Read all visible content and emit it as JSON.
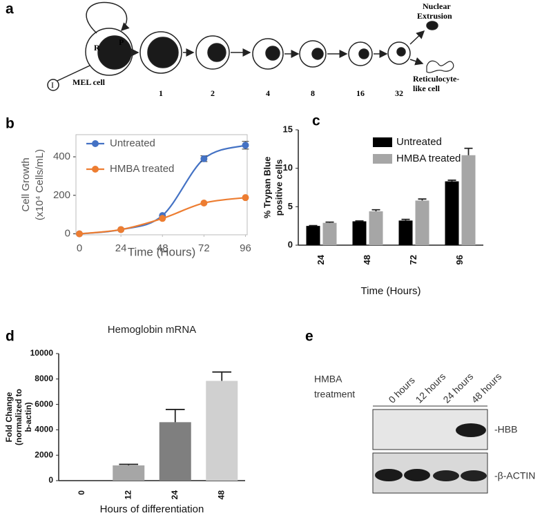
{
  "panels": [
    "a",
    "b",
    "c",
    "d",
    "e"
  ],
  "diagram": {
    "self_renewal": "R",
    "proliferation": "P",
    "inducer": "I",
    "start": "MEL cell",
    "steps": [
      "1",
      "2",
      "4",
      "8",
      "16",
      "32"
    ],
    "extrusion": [
      "Nuclear",
      "Extrusion"
    ],
    "product": [
      "Reticulocyte-",
      "like cell"
    ]
  },
  "chart_data": [
    {
      "type": "line",
      "xlabel": "Time (Hours)",
      "ylabel": [
        "Cell Growth",
        "(x10⁴ Cells/mL)"
      ],
      "x": [
        0,
        24,
        48,
        72,
        96
      ],
      "xlim": [
        -2,
        97
      ],
      "xticks": [
        0,
        24,
        48,
        72,
        96
      ],
      "ylim": [
        -5,
        515
      ],
      "yticks": [
        0,
        200,
        400
      ],
      "series": [
        {
          "name": "Untreated",
          "color": "#4472c4",
          "values": [
            0,
            22,
            95,
            390,
            460
          ],
          "errors": [
            null,
            null,
            null,
            15,
            20
          ]
        },
        {
          "name": "HMBA treated",
          "color": "#ed7d31",
          "values": [
            0,
            22,
            80,
            160,
            188
          ]
        }
      ]
    },
    {
      "type": "bar",
      "xlabel": "Time (Hours)",
      "ylabel": [
        "% Trypan Blue",
        "positive cells"
      ],
      "categories": [
        "24",
        "48",
        "72",
        "96"
      ],
      "ylim": [
        0,
        15
      ],
      "yticks": [
        0,
        5,
        10,
        15
      ],
      "series": [
        {
          "name": "Untreated",
          "color": "#000000",
          "values": [
            2.5,
            3.1,
            3.2,
            8.3
          ],
          "errors": [
            0.05,
            0.05,
            0.15,
            0.15
          ]
        },
        {
          "name": "HMBA treated",
          "color": "#a6a6a6",
          "values": [
            2.9,
            4.4,
            5.8,
            11.7
          ],
          "errors": [
            0.1,
            0.2,
            0.2,
            0.9
          ]
        }
      ]
    },
    {
      "type": "bar",
      "title": "Hemoglobin mRNA",
      "xlabel": "Hours of differentiation",
      "ylabel": [
        "Fold Change",
        "(normalized to",
        "b-actin)"
      ],
      "categories": [
        "0",
        "12",
        "24",
        "48"
      ],
      "ylim": [
        0,
        10000
      ],
      "yticks": [
        0,
        2000,
        4000,
        6000,
        8000,
        10000
      ],
      "series": [
        {
          "colors": [
            "#7f7f7f",
            "#a6a6a6",
            "#7f7f7f",
            "#d0d0d0"
          ],
          "values": [
            0,
            1200,
            4600,
            7850
          ],
          "errors": [
            null,
            80,
            1000,
            700
          ]
        }
      ]
    }
  ],
  "blot": {
    "treatment": [
      "HMBA",
      "treatment"
    ],
    "lanes": [
      "0 hours",
      "12 hours",
      "24 hours",
      "48 hours"
    ],
    "bands": [
      "-HBB",
      "-β-ACTIN"
    ]
  }
}
